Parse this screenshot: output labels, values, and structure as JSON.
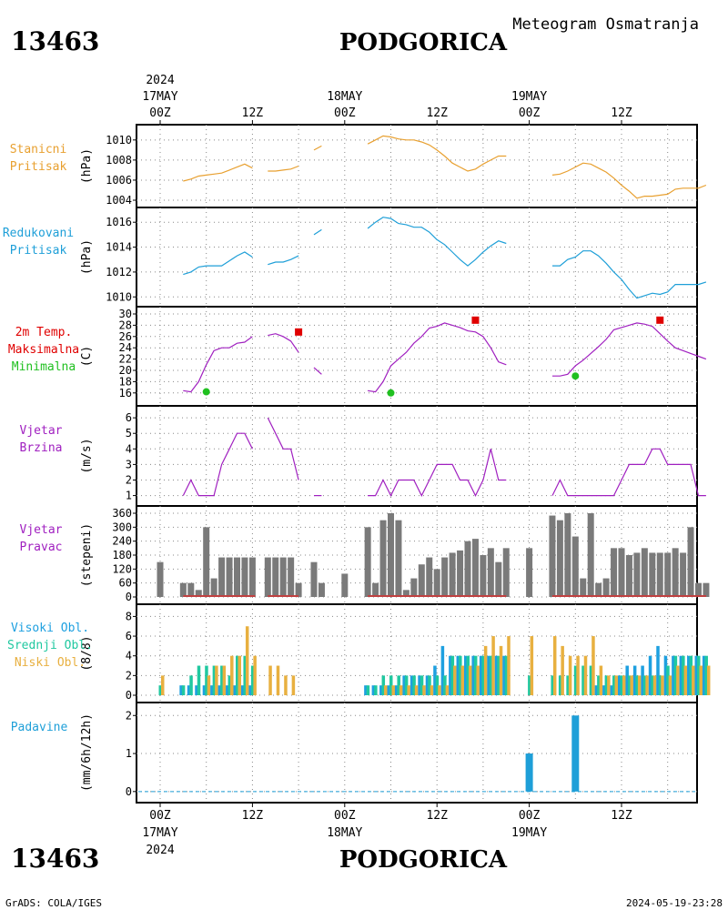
{
  "header": {
    "station_id": "13463",
    "station_name": "PODGORICA",
    "meteogram_title": "Meteogram Osmatranja"
  },
  "footer": {
    "station_id": "13463",
    "station_name": "PODGORICA",
    "credit": "GrADS: COLA/IGES",
    "timestamp": "2024-05-19-23:28"
  },
  "time_axis": {
    "year": "2024",
    "ticks": [
      {
        "hour": 0,
        "label": "00Z",
        "date": "17MAY"
      },
      {
        "hour": 12,
        "label": "12Z",
        "date": ""
      },
      {
        "hour": 24,
        "label": "00Z",
        "date": "18MAY"
      },
      {
        "hour": 36,
        "label": "12Z",
        "date": ""
      },
      {
        "hour": 48,
        "label": "00Z",
        "date": "19MAY"
      },
      {
        "hour": 60,
        "label": "12Z",
        "date": ""
      }
    ]
  },
  "colors": {
    "station_pressure": "#e8a030",
    "reduced_pressure": "#1e9fd8",
    "temp_max": "#e00000",
    "temp_min": "#20c020",
    "wind_speed": "#a020c0",
    "wind_dir": "#7a7a7a",
    "cloud_high": "#1ea0e0",
    "cloud_mid": "#20c8a0",
    "cloud_low": "#e8b040",
    "precip": "#1e9fd8"
  },
  "chart_data": [
    {
      "type": "line",
      "panel": "station_pressure",
      "label_lines": [
        "Stanicni",
        "Pritisak"
      ],
      "ylabel": "(hPa)",
      "ylim": [
        1004,
        1010.8
      ],
      "yticks": [
        1004,
        1006,
        1008,
        1010
      ],
      "x_unit": "hours since 2024-05-17 00Z",
      "segments": [
        {
          "x": [
            3,
            4,
            5,
            6,
            7,
            8,
            9,
            10,
            11,
            12
          ],
          "y": [
            1005.9,
            1006.1,
            1006.4,
            1006.5,
            1006.6,
            1006.7,
            1007.0,
            1007.3,
            1007.6,
            1007.2
          ]
        },
        {
          "x": [
            14,
            15,
            16,
            17,
            18
          ],
          "y": [
            1006.9,
            1006.9,
            1007.0,
            1007.1,
            1007.4
          ]
        },
        {
          "x": [
            20,
            21
          ],
          "y": [
            1009.0,
            1009.4
          ]
        },
        {
          "x": [
            27,
            28,
            29,
            30,
            31,
            32,
            33,
            34,
            35,
            36,
            37,
            38,
            39,
            40,
            41,
            42,
            43,
            44,
            45
          ],
          "y": [
            1009.6,
            1010.0,
            1010.4,
            1010.3,
            1010.1,
            1010.0,
            1010.0,
            1009.8,
            1009.5,
            1009.0,
            1008.4,
            1007.7,
            1007.3,
            1006.9,
            1007.1,
            1007.6,
            1008.0,
            1008.4,
            1008.4
          ]
        },
        {
          "x": [
            51,
            52,
            53,
            54,
            55,
            56,
            57,
            58,
            59,
            60,
            61,
            62,
            63,
            64,
            65,
            66,
            67,
            68,
            69,
            70,
            71
          ],
          "y": [
            1006.5,
            1006.6,
            1006.9,
            1007.3,
            1007.7,
            1007.6,
            1007.2,
            1006.8,
            1006.2,
            1005.5,
            1004.9,
            1004.2,
            1004.4,
            1004.4,
            1004.5,
            1004.6,
            1005.1,
            1005.2,
            1005.2,
            1005.2,
            1005.5
          ]
        }
      ]
    },
    {
      "type": "line",
      "panel": "reduced_pressure",
      "label_lines": [
        "Redukovani",
        "Pritisak"
      ],
      "ylabel": "(hPa)",
      "ylim": [
        1009.8,
        1016.6
      ],
      "yticks": [
        1010,
        1012,
        1014,
        1016
      ],
      "segments": [
        {
          "x": [
            3,
            4,
            5,
            6,
            7,
            8,
            9,
            10,
            11,
            12
          ],
          "y": [
            1011.8,
            1012.0,
            1012.4,
            1012.5,
            1012.5,
            1012.5,
            1012.9,
            1013.3,
            1013.6,
            1013.2
          ]
        },
        {
          "x": [
            14,
            15,
            16,
            17,
            18
          ],
          "y": [
            1012.6,
            1012.8,
            1012.8,
            1013.0,
            1013.3
          ]
        },
        {
          "x": [
            20,
            21
          ],
          "y": [
            1015.0,
            1015.4
          ]
        },
        {
          "x": [
            27,
            28,
            29,
            30,
            31,
            32,
            33,
            34,
            35,
            36,
            37,
            38,
            39,
            40,
            41,
            42,
            43,
            44,
            45
          ],
          "y": [
            1015.5,
            1016.0,
            1016.4,
            1016.3,
            1015.9,
            1015.8,
            1015.6,
            1015.6,
            1015.2,
            1014.6,
            1014.2,
            1013.6,
            1013.0,
            1012.5,
            1013.0,
            1013.6,
            1014.1,
            1014.5,
            1014.3
          ]
        },
        {
          "x": [
            51,
            52,
            53,
            54,
            55,
            56,
            57,
            58,
            59,
            60,
            61,
            62,
            63,
            64,
            65,
            66,
            67,
            68,
            69,
            70,
            71
          ],
          "y": [
            1012.5,
            1012.5,
            1013.0,
            1013.2,
            1013.7,
            1013.7,
            1013.3,
            1012.7,
            1012.0,
            1011.4,
            1010.6,
            1009.9,
            1010.1,
            1010.3,
            1010.2,
            1010.4,
            1011.0,
            1011.0,
            1011.0,
            1011.0,
            1011.2
          ]
        }
      ]
    },
    {
      "type": "line",
      "panel": "temperature",
      "label_lines": [
        "2m Temp.",
        "Maksimalna",
        "Minimalna"
      ],
      "ylabel": "(C)",
      "ylim": [
        15,
        30
      ],
      "yticks": [
        16,
        18,
        20,
        22,
        24,
        26,
        28,
        30
      ],
      "segments": [
        {
          "x": [
            3,
            4,
            5,
            6,
            7,
            8,
            9,
            10,
            11,
            12
          ],
          "y": [
            16.4,
            16.2,
            18.0,
            21.0,
            23.5,
            24.0,
            24.0,
            24.8,
            25.0,
            26.0
          ]
        },
        {
          "x": [
            14,
            15,
            16,
            17,
            18
          ],
          "y": [
            26.2,
            26.5,
            26.0,
            25.2,
            23.2
          ]
        },
        {
          "x": [
            20,
            21
          ],
          "y": [
            20.5,
            19.3
          ]
        },
        {
          "x": [
            27,
            28,
            29,
            30,
            31,
            32,
            33,
            34,
            35,
            36,
            37,
            38,
            39,
            40,
            41,
            42,
            43,
            44,
            45
          ],
          "y": [
            16.4,
            16.2,
            18.0,
            20.8,
            22.0,
            23.2,
            24.8,
            26.0,
            27.5,
            27.8,
            28.4,
            28.0,
            27.6,
            27.0,
            26.8,
            26.0,
            24.0,
            21.5,
            21.0
          ]
        },
        {
          "x": [
            51,
            52,
            53,
            54,
            55,
            56,
            57,
            58,
            59,
            60,
            61,
            62,
            63,
            64,
            65,
            66,
            67,
            68,
            69,
            70,
            71
          ],
          "y": [
            19.0,
            19.0,
            19.3,
            20.8,
            21.8,
            23.0,
            24.2,
            25.5,
            27.2,
            27.6,
            28.0,
            28.4,
            28.2,
            27.8,
            26.5,
            25.2,
            24.0,
            23.5,
            23.0,
            22.5,
            22.0
          ]
        }
      ],
      "max_points": [
        {
          "x": 18,
          "y": 26.8
        },
        {
          "x": 41,
          "y": 28.9
        },
        {
          "x": 65,
          "y": 28.9
        }
      ],
      "min_points": [
        {
          "x": 6,
          "y": 16.2
        },
        {
          "x": 30,
          "y": 16.0
        },
        {
          "x": 54,
          "y": 19.0
        }
      ]
    },
    {
      "type": "line",
      "panel": "wind_speed",
      "label_lines": [
        "Vjetar",
        "Brzina"
      ],
      "ylabel": "(m/s)",
      "ylim": [
        0.8,
        6.3
      ],
      "yticks": [
        1,
        2,
        3,
        4,
        5,
        6
      ],
      "segments": [
        {
          "x": [
            3,
            4,
            5,
            6,
            7,
            8,
            9,
            10,
            11,
            12
          ],
          "y": [
            1,
            2,
            1,
            1,
            1,
            3,
            4,
            5,
            5,
            4
          ]
        },
        {
          "x": [
            14,
            15,
            16,
            17,
            18
          ],
          "y": [
            6,
            5,
            4,
            4,
            2
          ]
        },
        {
          "x": [
            20,
            21
          ],
          "y": [
            1,
            1
          ]
        },
        {
          "x": [
            27,
            28,
            29,
            30,
            31,
            32,
            33,
            34,
            35,
            36,
            37,
            38,
            39,
            40,
            41,
            42,
            43,
            44,
            45
          ],
          "y": [
            1,
            1,
            2,
            1,
            2,
            2,
            2,
            1,
            2,
            3,
            3,
            3,
            2,
            2,
            1,
            2,
            4,
            2,
            2
          ]
        },
        {
          "x": [
            51,
            52,
            53,
            54,
            55,
            56,
            57,
            58,
            59,
            60,
            61,
            62,
            63,
            64,
            65,
            66,
            67,
            68,
            69,
            70,
            71
          ],
          "y": [
            1,
            2,
            1,
            1,
            1,
            1,
            1,
            1,
            1,
            2,
            3,
            3,
            3,
            4,
            4,
            3,
            3,
            3,
            3,
            1,
            1
          ]
        }
      ]
    },
    {
      "type": "bar",
      "panel": "wind_direction",
      "label_lines": [
        "Vjetar",
        "Pravac"
      ],
      "ylabel": "(stepeni)",
      "ylim": [
        0,
        360
      ],
      "yticks": [
        0,
        60,
        120,
        180,
        240,
        300,
        360
      ],
      "x": [
        0,
        3,
        4,
        5,
        6,
        7,
        8,
        9,
        10,
        11,
        12,
        14,
        15,
        16,
        17,
        18,
        20,
        21,
        24,
        27,
        28,
        29,
        30,
        31,
        32,
        33,
        34,
        35,
        36,
        37,
        38,
        39,
        40,
        41,
        42,
        43,
        44,
        45,
        48,
        51,
        52,
        53,
        54,
        55,
        56,
        57,
        58,
        59,
        60,
        61,
        62,
        63,
        64,
        65,
        66,
        67,
        68,
        69,
        70,
        71
      ],
      "values": [
        150,
        60,
        60,
        30,
        300,
        80,
        170,
        170,
        170,
        170,
        170,
        170,
        170,
        170,
        170,
        60,
        150,
        60,
        100,
        300,
        60,
        330,
        360,
        330,
        30,
        80,
        140,
        170,
        120,
        170,
        190,
        200,
        240,
        250,
        180,
        210,
        150,
        210,
        210,
        350,
        330,
        360,
        260,
        80,
        360,
        60,
        80,
        210,
        210,
        180,
        190,
        210,
        190,
        190,
        190,
        210,
        190,
        300,
        60,
        60
      ]
    },
    {
      "type": "bar",
      "panel": "cloud_cover",
      "label_lines": [
        "Visoki Obl.",
        "Srednji Obl.",
        "Niski Obl."
      ],
      "ylabel": "(8/8)",
      "ylim": [
        0,
        8.5
      ],
      "yticks": [
        0,
        2,
        4,
        6,
        8
      ],
      "x": [
        0,
        3,
        4,
        5,
        6,
        7,
        8,
        9,
        10,
        11,
        12,
        14,
        15,
        16,
        17,
        18,
        20,
        21,
        24,
        27,
        28,
        29,
        30,
        31,
        32,
        33,
        34,
        35,
        36,
        37,
        38,
        39,
        40,
        41,
        42,
        43,
        44,
        45,
        48,
        51,
        52,
        53,
        54,
        55,
        56,
        57,
        58,
        59,
        60,
        61,
        62,
        63,
        64,
        65,
        66,
        67,
        68,
        69,
        70,
        71
      ],
      "series": [
        {
          "name": "Visoki Obl.",
          "values": [
            0,
            1,
            1,
            1,
            1,
            1,
            1,
            1,
            1,
            1,
            1,
            0,
            0,
            0,
            0,
            0,
            0,
            0,
            0,
            1,
            1,
            1,
            1,
            1,
            2,
            2,
            2,
            2,
            3,
            5,
            4,
            4,
            4,
            4,
            4,
            4,
            4,
            4,
            0,
            0,
            0,
            0,
            0,
            0,
            0,
            1,
            1,
            1,
            2,
            3,
            3,
            3,
            4,
            5,
            4,
            4,
            4,
            4,
            4,
            4
          ]
        },
        {
          "name": "Srednji Obl.",
          "values": [
            1,
            1,
            2,
            3,
            3,
            3,
            3,
            2,
            4,
            4,
            3,
            0,
            0,
            0,
            0,
            0,
            0,
            0,
            0,
            1,
            1,
            2,
            2,
            2,
            2,
            2,
            2,
            2,
            2,
            2,
            4,
            4,
            4,
            4,
            4,
            4,
            4,
            4,
            2,
            2,
            2,
            2,
            3,
            3,
            3,
            2,
            2,
            2,
            2,
            2,
            2,
            2,
            2,
            2,
            3,
            4,
            4,
            4,
            4,
            4
          ]
        },
        {
          "name": "Niski Obl.",
          "values": [
            2,
            0,
            0,
            0,
            2,
            3,
            3,
            4,
            4,
            7,
            4,
            3,
            3,
            2,
            2,
            0,
            0,
            0,
            0,
            0,
            0,
            1,
            1,
            1,
            1,
            1,
            1,
            1,
            1,
            1,
            3,
            3,
            3,
            3,
            5,
            6,
            5,
            6,
            6,
            6,
            5,
            4,
            4,
            4,
            6,
            3,
            2,
            2,
            2,
            2,
            2,
            2,
            2,
            2,
            2,
            3,
            3,
            3,
            3,
            3
          ]
        }
      ]
    },
    {
      "type": "bar",
      "panel": "precipitation",
      "label_lines": [
        "Padavine"
      ],
      "ylabel": "(mm/6h/12h)",
      "ylim": [
        -0.1,
        2.15
      ],
      "yticks": [
        0,
        1,
        2
      ],
      "x": [
        48,
        54
      ],
      "values": [
        1,
        2
      ]
    }
  ]
}
